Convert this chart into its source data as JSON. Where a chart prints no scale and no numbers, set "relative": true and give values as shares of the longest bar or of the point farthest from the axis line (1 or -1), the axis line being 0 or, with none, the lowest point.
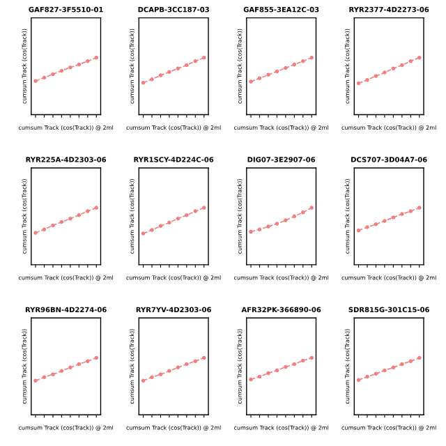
{
  "chart_data": [
    {
      "type": "line",
      "title": "GAF827-3F5510-01",
      "xlabel": "cumsum Track (cos(Track)) @ 2ml",
      "ylabel": "cumsum Track (cos(Track))",
      "relative": true,
      "categories": [
        null,
        null,
        null,
        null,
        null,
        null,
        null,
        null
      ],
      "series": [
        {
          "color": "#f08080",
          "values": [
            0.59,
            0.65,
            0.71,
            0.77,
            0.83,
            0.88,
            0.94,
            1
          ]
        }
      ],
      "marker": "circle",
      "line_style": "dashed"
    },
    {
      "type": "line",
      "title": "DCAPB-3CC187-03",
      "xlabel": "cumsum Track (cos(Track)) @ 2ml",
      "ylabel": "cumsum Track (cos(Track))",
      "relative": true,
      "categories": [
        null,
        null,
        null,
        null,
        null,
        null,
        null,
        null
      ],
      "series": [
        {
          "color": "#f08080",
          "values": [
            0.56,
            0.62,
            0.69,
            0.75,
            0.81,
            0.87,
            0.94,
            1
          ]
        }
      ],
      "marker": "circle",
      "line_style": "dashed"
    },
    {
      "type": "line",
      "title": "GAF855-3EA12C-03",
      "xlabel": "cumsum Track (cos(Track)) @ 2ml",
      "ylabel": "cumsum Track (cos(Track))",
      "relative": true,
      "categories": [
        null,
        null,
        null,
        null,
        null,
        null,
        null,
        null
      ],
      "series": [
        {
          "color": "#f08080",
          "values": [
            0.58,
            0.64,
            0.7,
            0.76,
            0.82,
            0.88,
            0.94,
            1
          ]
        }
      ],
      "marker": "circle",
      "line_style": "dashed"
    },
    {
      "type": "line",
      "title": "RYR2377-4D2273-06",
      "xlabel": "cumsum Track (cos(Track)) @ 2ml",
      "ylabel": "cumsum Track (cos(Track))",
      "relative": true,
      "categories": [
        null,
        null,
        null,
        null,
        null,
        null,
        null,
        null
      ],
      "series": [
        {
          "color": "#f08080",
          "values": [
            0.55,
            0.61,
            0.68,
            0.74,
            0.81,
            0.87,
            0.94,
            1
          ]
        }
      ],
      "marker": "circle",
      "line_style": "dashed"
    },
    {
      "type": "line",
      "title": "RYR225A-4D2303-06",
      "xlabel": "cumsum Track (cos(Track)) @ 2ml",
      "ylabel": "cumsum Track (cos(Track))",
      "relative": true,
      "categories": [
        null,
        null,
        null,
        null,
        null,
        null,
        null,
        null
      ],
      "series": [
        {
          "color": "#f08080",
          "values": [
            0.56,
            0.62,
            0.69,
            0.75,
            0.81,
            0.87,
            0.94,
            1
          ]
        }
      ],
      "marker": "circle",
      "line_style": "dashed"
    },
    {
      "type": "line",
      "title": "RYR1SCY-4D224C-06",
      "xlabel": "cumsum Track (cos(Track)) @ 2ml",
      "ylabel": "cumsum Track (cos(Track))",
      "relative": true,
      "categories": [
        null,
        null,
        null,
        null,
        null,
        null,
        null,
        null
      ],
      "series": [
        {
          "color": "#f08080",
          "values": [
            0.55,
            0.61,
            0.68,
            0.74,
            0.81,
            0.87,
            0.94,
            1
          ]
        }
      ],
      "marker": "circle",
      "line_style": "dashed"
    },
    {
      "type": "line",
      "title": "DIG07-3E2907-06",
      "xlabel": "cumsum Track (cos(Track)) @ 2ml",
      "ylabel": "cumsum Track (cos(Track))",
      "relative": true,
      "categories": [
        null,
        null,
        null,
        null,
        null,
        null,
        null,
        null
      ],
      "series": [
        {
          "color": "#f08080",
          "values": [
            0.58,
            0.62,
            0.67,
            0.72,
            0.78,
            0.85,
            0.92,
            1
          ]
        }
      ],
      "marker": "circle",
      "line_style": "dashed"
    },
    {
      "type": "line",
      "title": "DCS707-3D04A7-06",
      "xlabel": "cumsum Track (cos(Track)) @ 2ml",
      "ylabel": "cumsum Track (cos(Track))",
      "relative": true,
      "categories": [
        null,
        null,
        null,
        null,
        null,
        null,
        null,
        null
      ],
      "series": [
        {
          "color": "#f08080",
          "values": [
            0.6,
            0.66,
            0.71,
            0.77,
            0.83,
            0.89,
            0.94,
            1
          ]
        }
      ],
      "marker": "circle",
      "line_style": "dashed"
    },
    {
      "type": "line",
      "title": "RYR96BN-4D2274-06",
      "xlabel": "cumsum Track (cos(Track)) @ 2ml",
      "ylabel": "cumsum Track (cos(Track))",
      "relative": true,
      "categories": [
        null,
        null,
        null,
        null,
        null,
        null,
        null,
        null
      ],
      "series": [
        {
          "color": "#f08080",
          "values": [
            0.6,
            0.66,
            0.71,
            0.77,
            0.83,
            0.89,
            0.94,
            1
          ]
        }
      ],
      "marker": "circle",
      "line_style": "dashed"
    },
    {
      "type": "line",
      "title": "RYR7YV-4D2303-06",
      "xlabel": "cumsum Track (cos(Track)) @ 2ml",
      "ylabel": "cumsum Track (cos(Track))",
      "relative": true,
      "categories": [
        null,
        null,
        null,
        null,
        null,
        null,
        null,
        null
      ],
      "series": [
        {
          "color": "#f08080",
          "values": [
            0.6,
            0.66,
            0.71,
            0.77,
            0.83,
            0.89,
            0.94,
            1
          ]
        }
      ],
      "marker": "circle",
      "line_style": "dashed"
    },
    {
      "type": "line",
      "title": "AFR32PK-366890-06",
      "xlabel": "cumsum Track (cos(Track)) @ 2ml",
      "ylabel": "cumsum Track (cos(Track))",
      "relative": true,
      "categories": [
        null,
        null,
        null,
        null,
        null,
        null,
        null,
        null
      ],
      "series": [
        {
          "color": "#f08080",
          "values": [
            0.62,
            0.67,
            0.73,
            0.78,
            0.84,
            0.89,
            0.95,
            1
          ]
        }
      ],
      "marker": "circle",
      "line_style": "dashed"
    },
    {
      "type": "line",
      "title": "SDR815G-301C15-06",
      "xlabel": "cumsum Track (cos(Track)) @ 2ml",
      "ylabel": "cumsum Track (cos(Track))",
      "relative": true,
      "categories": [
        null,
        null,
        null,
        null,
        null,
        null,
        null,
        null
      ],
      "series": [
        {
          "color": "#f08080",
          "values": [
            0.61,
            0.67,
            0.72,
            0.78,
            0.83,
            0.89,
            0.94,
            1
          ]
        }
      ],
      "marker": "circle",
      "line_style": "dashed"
    }
  ]
}
